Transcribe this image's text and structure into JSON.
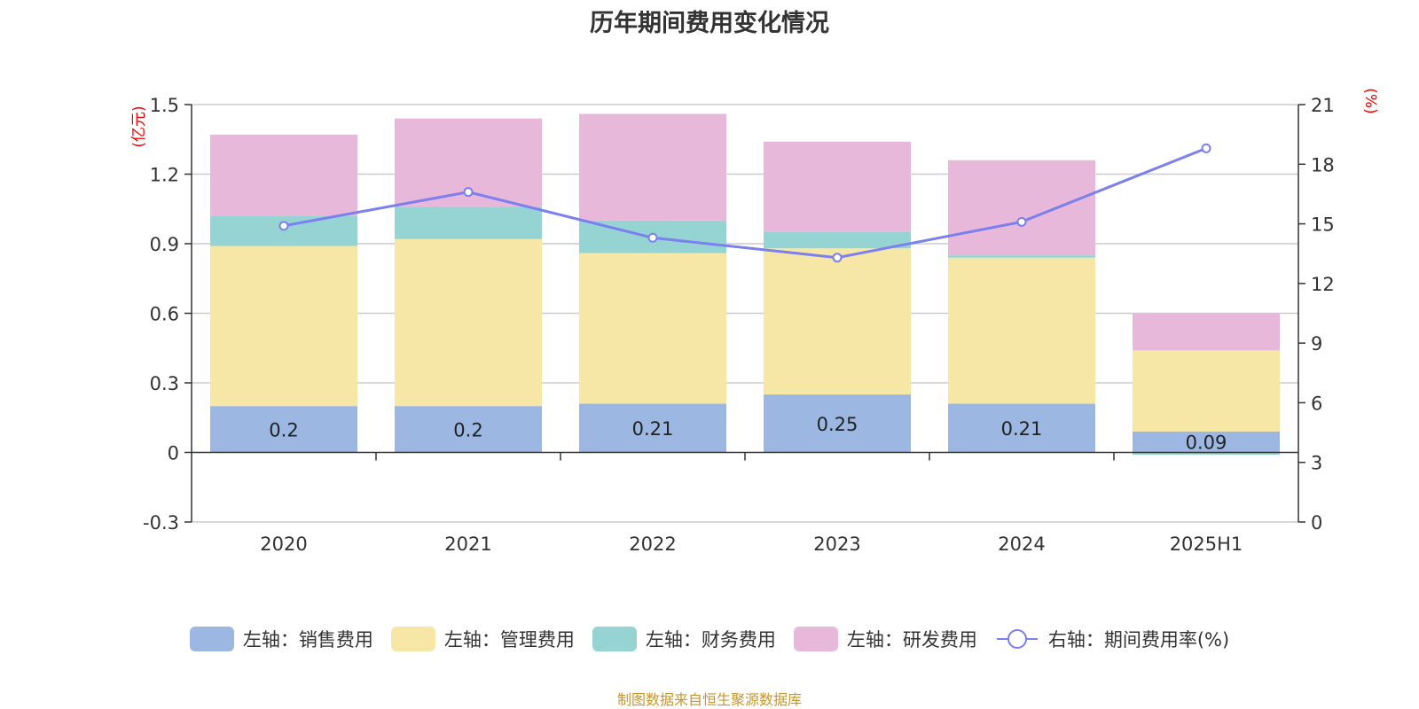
{
  "title": "历年期间费用变化情况",
  "footer": "制图数据来自恒生聚源数据库",
  "colors": {
    "sales": "#9bb7e2",
    "admin": "#f7e7a6",
    "finance": "#96d4d4",
    "rnd": "#e8b8da",
    "line": "#7b7ff0",
    "axis_unit": "#ee0000"
  },
  "legend": [
    {
      "label": "左轴：销售费用",
      "kind": "bar",
      "color": "#9bb7e2"
    },
    {
      "label": "左轴：管理费用",
      "kind": "bar",
      "color": "#f7e7a6"
    },
    {
      "label": "左轴：财务费用",
      "kind": "bar",
      "color": "#96d4d4"
    },
    {
      "label": "左轴：研发费用",
      "kind": "bar",
      "color": "#e8b8da"
    },
    {
      "label": "右轴：期间费用率(%)",
      "kind": "line",
      "color": "#7b7ff0"
    }
  ],
  "chart_data": {
    "type": "bar",
    "stacked": true,
    "categories": [
      "2020",
      "2021",
      "2022",
      "2023",
      "2024",
      "2025H1"
    ],
    "left_axis": {
      "unit": "(亿元)",
      "min": -0.3,
      "max": 1.5,
      "ticks": [
        -0.3,
        0,
        0.3,
        0.6,
        0.9,
        1.2,
        1.5
      ]
    },
    "right_axis": {
      "unit": "(%)",
      "min": 0,
      "max": 21,
      "ticks": [
        0,
        3,
        6,
        9,
        12,
        15,
        18,
        21
      ]
    },
    "series": [
      {
        "name": "左轴：销售费用",
        "axis": "left",
        "type": "bar",
        "values": [
          0.2,
          0.2,
          0.21,
          0.25,
          0.21,
          0.09
        ],
        "data_labels": [
          "0.2",
          "0.2",
          "0.21",
          "0.25",
          "0.21",
          "0.09"
        ]
      },
      {
        "name": "左轴：管理费用",
        "axis": "left",
        "type": "bar",
        "values": [
          0.69,
          0.72,
          0.65,
          0.63,
          0.63,
          0.35
        ]
      },
      {
        "name": "左轴：财务费用",
        "axis": "left",
        "type": "bar",
        "values": [
          0.13,
          0.14,
          0.14,
          0.07,
          0.01,
          -0.01
        ]
      },
      {
        "name": "左轴：研发费用",
        "axis": "left",
        "type": "bar",
        "values": [
          0.35,
          0.38,
          0.46,
          0.39,
          0.41,
          0.16
        ]
      },
      {
        "name": "右轴：期间费用率(%)",
        "axis": "right",
        "type": "line",
        "values": [
          14.9,
          16.6,
          14.3,
          13.3,
          15.1,
          18.8
        ]
      }
    ],
    "grid": true
  }
}
